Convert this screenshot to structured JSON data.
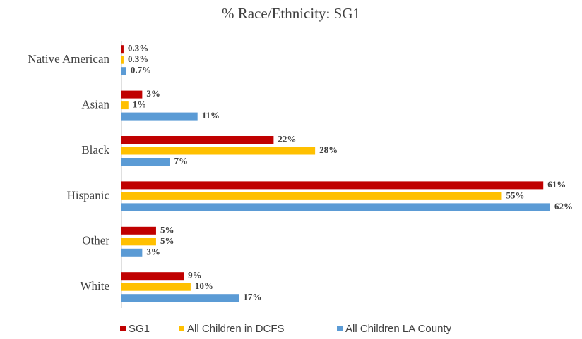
{
  "chart_data": {
    "type": "hbar",
    "title": "% Race/Ethnicity: SG1",
    "categories": [
      "Native American",
      "Asian",
      "Black",
      "Hispanic",
      "Other",
      "White"
    ],
    "series": [
      {
        "name": "SG1",
        "color": "#c00000",
        "values": [
          0.3,
          3,
          22,
          61,
          5,
          9
        ],
        "value_labels": [
          "0.3%",
          "3%",
          "22%",
          "61%",
          "5%",
          "9%"
        ]
      },
      {
        "name": "All Children in DCFS",
        "color": "#ffc000",
        "values": [
          0.3,
          1,
          28,
          55,
          5,
          10
        ],
        "value_labels": [
          "0.3%",
          "1%",
          "28%",
          "55%",
          "5%",
          "10%"
        ]
      },
      {
        "name": "All Children LA County",
        "color": "#5b9bd5",
        "values": [
          0.7,
          11,
          7,
          62,
          3,
          17
        ],
        "value_labels": [
          "0.7%",
          "11%",
          "7%",
          "62%",
          "3%",
          "17%"
        ]
      }
    ],
    "legend": "bottom"
  }
}
